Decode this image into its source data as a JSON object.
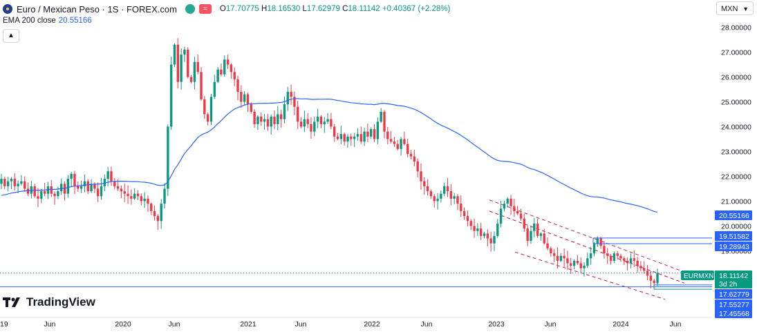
{
  "header": {
    "title": "Euro / Mexican Peso · 1S · FOREX.com",
    "approx_symbol": "≈",
    "o_label": "O",
    "o_value": "17.70775",
    "h_label": "H",
    "h_value": "18.16530",
    "l_label": "L",
    "l_value": "17.62979",
    "c_label": "C",
    "c_value": "18.11142",
    "change": "+0.40367 (+2.28%)"
  },
  "indicator": {
    "label": "EMA 200 close",
    "value": "20.55166"
  },
  "currency_selector": {
    "value": "MXN"
  },
  "logo": {
    "text": "TradingView"
  },
  "colors": {
    "up": "#089981",
    "down": "#f23645",
    "ema": "#2962ff",
    "channel": "#c2185b",
    "box_blue": "#2962ff",
    "green_badge": "#089981"
  },
  "chart_data": {
    "type": "candlestick",
    "symbol": "EURMXN",
    "timeframe": "1S",
    "y_ticks": [
      "28.00000",
      "27.00000",
      "26.00000",
      "25.00000",
      "24.00000",
      "23.00000",
      "22.00000",
      "21.00000",
      "20.00000",
      "19.00000"
    ],
    "ylim": [
      17.4,
      28.2
    ],
    "x_ticks": [
      "19",
      "Jun",
      "2020",
      "Jun",
      "2021",
      "Jun",
      "2022",
      "Jun",
      "2023",
      "Jun",
      "2024",
      "Jun"
    ],
    "price_tags": [
      {
        "label": "20.55166",
        "value": 20.55166,
        "kind": "ema"
      },
      {
        "label": "19.51582",
        "value": 19.51582,
        "kind": "level"
      },
      {
        "label": "19.28943",
        "value": 19.28943,
        "kind": "level"
      },
      {
        "label": "18.11142",
        "value": 18.11142,
        "kind": "last"
      },
      {
        "label": "3d 2h",
        "kind": "countdown"
      },
      {
        "label": "17.62779",
        "value": 17.62779,
        "kind": "level"
      },
      {
        "label": "17.55277",
        "value": 17.55277,
        "kind": "level"
      },
      {
        "label": "17.45568",
        "value": 17.45568,
        "kind": "level"
      }
    ],
    "symbol_tag": "EURMXN",
    "closes_weekly": [
      21.9,
      21.6,
      21.8,
      21.9,
      21.6,
      21.7,
      21.8,
      21.5,
      21.3,
      21.6,
      21.2,
      21.1,
      21.4,
      21.3,
      21.6,
      21.3,
      21.2,
      21.4,
      21.7,
      21.3,
      21.9,
      22.1,
      21.6,
      21.5,
      21.6,
      21.8,
      21.4,
      21.7,
      21.5,
      21.2,
      21.6,
      21.9,
      22.2,
      21.8,
      21.6,
      21.5,
      21.4,
      21.3,
      21.2,
      21.1,
      21.3,
      21.2,
      21.0,
      21.1,
      20.9,
      20.6,
      20.4,
      20.2,
      20.9,
      21.5,
      24.0,
      26.5,
      27.3,
      25.8,
      26.9,
      27.1,
      26.0,
      25.8,
      26.6,
      26.2,
      25.1,
      24.5,
      24.2,
      25.2,
      25.8,
      26.3,
      26.1,
      26.7,
      26.5,
      26.2,
      25.9,
      25.4,
      25.0,
      25.3,
      24.9,
      24.6,
      24.1,
      24.4,
      24.2,
      24.3,
      24.0,
      24.4,
      24.1,
      24.5,
      24.3,
      24.9,
      25.4,
      25.2,
      24.8,
      24.2,
      24.0,
      24.3,
      24.1,
      23.8,
      24.2,
      24.4,
      24.1,
      24.2,
      24.3,
      24.0,
      23.6,
      23.5,
      23.7,
      23.4,
      23.6,
      23.5,
      23.6,
      23.7,
      23.4,
      23.8,
      23.6,
      23.9,
      23.5,
      24.2,
      24.6,
      23.8,
      23.5,
      23.4,
      23.3,
      23.1,
      23.5,
      23.3,
      22.9,
      22.8,
      22.6,
      22.2,
      21.8,
      21.6,
      21.4,
      21.2,
      21.0,
      21.1,
      21.3,
      21.6,
      21.4,
      21.1,
      21.2,
      20.9,
      20.6,
      20.4,
      20.2,
      20.0,
      19.8,
      19.9,
      19.6,
      19.7,
      19.5,
      19.3,
      19.6,
      20.1,
      20.7,
      20.9,
      21.1,
      20.8,
      20.6,
      20.5,
      20.3,
      19.9,
      19.4,
      19.8,
      20.1,
      19.6,
      19.7,
      19.3,
      19.1,
      18.9,
      18.8,
      18.6,
      18.8,
      18.7,
      18.5,
      18.4,
      18.6,
      18.5,
      18.3,
      18.4,
      18.7,
      18.9,
      19.3,
      19.5,
      19.2,
      18.9,
      18.8,
      18.6,
      18.9,
      18.8,
      18.7,
      18.6,
      18.5,
      18.7,
      18.6,
      18.4,
      18.3,
      18.2,
      18.0,
      17.8,
      17.7,
      18.11
    ]
  }
}
